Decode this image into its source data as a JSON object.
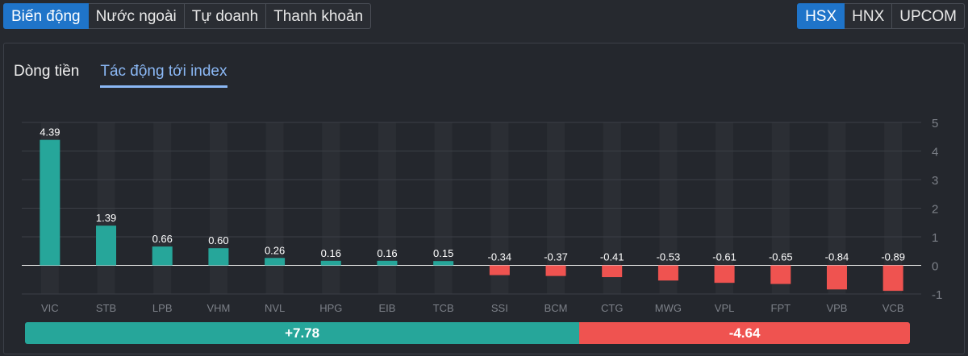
{
  "tabs": [
    "Biến động",
    "Nước ngoài",
    "Tự doanh",
    "Thanh khoản"
  ],
  "exchanges": [
    "HSX",
    "HNX",
    "UPCOM"
  ],
  "subtabs": [
    "Dòng tiền",
    "Tác động tới index"
  ],
  "totals": {
    "positive": "+7.78",
    "negative": "-4.64",
    "positive_value": 7.78,
    "negative_value": -4.64
  },
  "colors": {
    "positive": "#26a69a",
    "negative": "#ef5350",
    "accent": "#1f74c9"
  },
  "chart_data": {
    "type": "bar",
    "categories": [
      "VIC",
      "STB",
      "LPB",
      "VHM",
      "NVL",
      "HPG",
      "EIB",
      "TCB",
      "SSI",
      "BCM",
      "CTG",
      "MWG",
      "VPL",
      "FPT",
      "VPB",
      "VCB"
    ],
    "values": [
      4.39,
      1.39,
      0.66,
      0.6,
      0.26,
      0.16,
      0.16,
      0.15,
      -0.34,
      -0.37,
      -0.41,
      -0.53,
      -0.61,
      -0.65,
      -0.84,
      -0.89
    ],
    "labels": [
      "4.39",
      "1.39",
      "0.66",
      "0.60",
      "0.26",
      "0.16",
      "0.16",
      "0.15",
      "-0.34",
      "-0.37",
      "-0.41",
      "-0.53",
      "-0.61",
      "-0.65",
      "-0.84",
      "-0.89"
    ],
    "ylim": [
      -1,
      5
    ],
    "yticks": [
      5,
      4,
      3,
      2,
      1,
      0,
      -1
    ],
    "y_axis_side": "right",
    "grid": true
  }
}
